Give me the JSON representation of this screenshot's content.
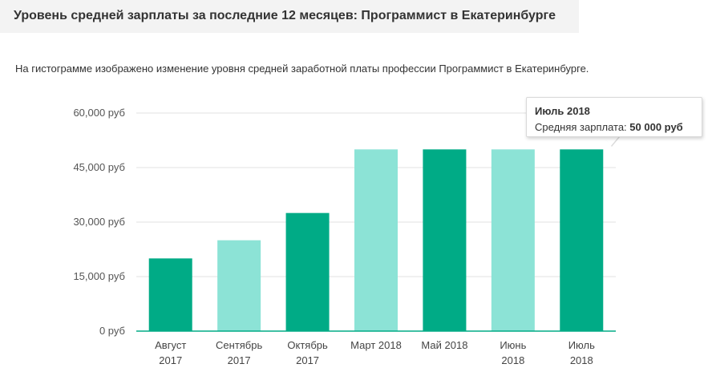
{
  "header": {
    "title": "Уровень средней зарплаты за последние 12 месяцев: Программист в Екатеринбурге"
  },
  "description": "На гистограмме изображено изменение уровня средней заработной платы профессии Программист в Екатеринбурге.",
  "tooltip": {
    "title": "Июль 2018",
    "label": "Средняя зарплата:",
    "value": "50 000 руб"
  },
  "colors": {
    "dark": "#00ab86",
    "light": "#8ce3d6",
    "grid": "#e0e0e0",
    "axis": "#00ab86"
  },
  "chart_data": {
    "type": "bar",
    "title": "",
    "xlabel": "",
    "ylabel": "",
    "ylim": [
      0,
      60000
    ],
    "yticks": [
      0,
      15000,
      30000,
      45000,
      60000
    ],
    "ytick_labels": [
      "0 руб",
      "15,000 руб",
      "30,000 руб",
      "45,000 руб",
      "60,000 руб"
    ],
    "categories": [
      [
        "Август",
        "2017"
      ],
      [
        "Сентябрь",
        "2017"
      ],
      [
        "Октябрь",
        "2017"
      ],
      [
        "Март 2018"
      ],
      [
        "Май 2018"
      ],
      [
        "Июнь",
        "2018"
      ],
      [
        "Июль",
        "2018"
      ]
    ],
    "values": [
      20000,
      25000,
      32500,
      50000,
      50000,
      50000,
      50000
    ],
    "shades": [
      "dark",
      "light",
      "dark",
      "light",
      "dark",
      "light",
      "dark"
    ],
    "highlighted_index": 6
  }
}
